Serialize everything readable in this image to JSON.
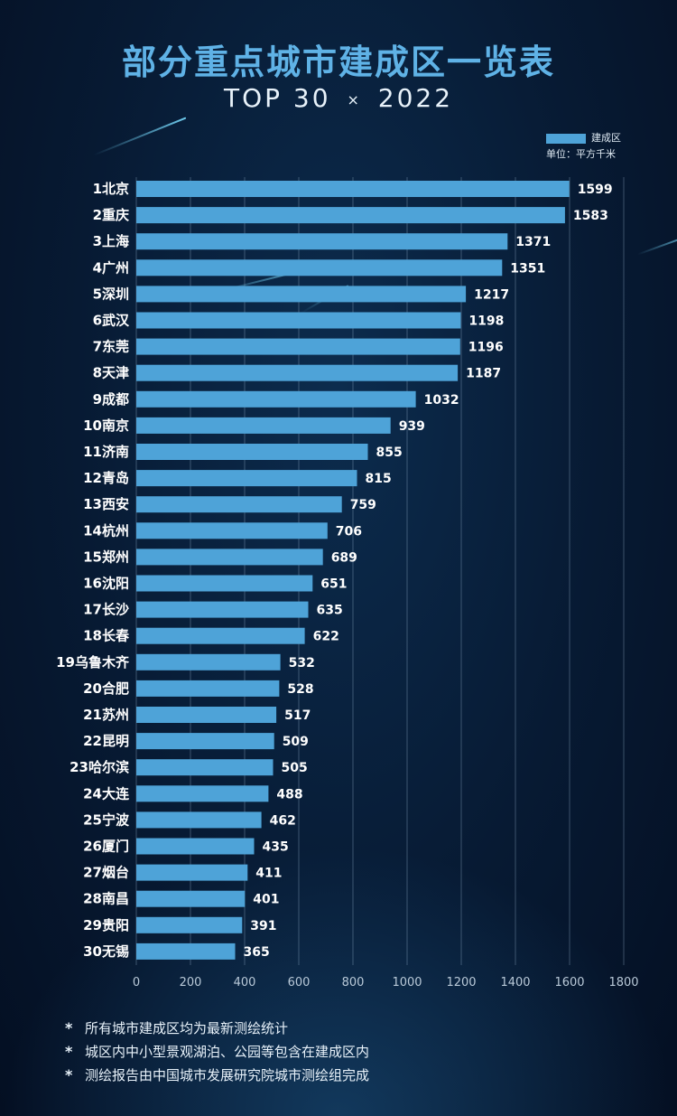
{
  "header": {
    "title": "部分重点城市建成区一览表",
    "subtitle_left": "TOP 30",
    "subtitle_sep": "×",
    "subtitle_right": "2022"
  },
  "legend": {
    "series_label": "建成区",
    "unit": "单位：平方千米"
  },
  "chart_data": {
    "type": "bar",
    "orientation": "horizontal",
    "title": "部分重点城市建成区一览表",
    "series": [
      {
        "name": "建成区",
        "values": [
          1599,
          1583,
          1371,
          1351,
          1217,
          1198,
          1196,
          1187,
          1032,
          939,
          855,
          815,
          759,
          706,
          689,
          651,
          635,
          622,
          532,
          528,
          517,
          509,
          505,
          488,
          462,
          435,
          411,
          401,
          391,
          365
        ]
      }
    ],
    "categories": [
      "1北京",
      "2重庆",
      "3上海",
      "4广州",
      "5深圳",
      "6武汉",
      "7东莞",
      "8天津",
      "9成都",
      "10南京",
      "11济南",
      "12青岛",
      "13西安",
      "14杭州",
      "15郑州",
      "16沈阳",
      "17长沙",
      "18长春",
      "19乌鲁木齐",
      "20合肥",
      "21苏州",
      "22昆明",
      "23哈尔滨",
      "24大连",
      "25宁波",
      "26厦门",
      "27烟台",
      "28南昌",
      "29贵阳",
      "30无锡"
    ],
    "values": [
      1599,
      1583,
      1371,
      1351,
      1217,
      1198,
      1196,
      1187,
      1032,
      939,
      855,
      815,
      759,
      706,
      689,
      651,
      635,
      622,
      532,
      528,
      517,
      509,
      505,
      488,
      462,
      435,
      411,
      401,
      391,
      365
    ],
    "xlim": [
      0,
      1800
    ],
    "xticks": [
      "0",
      "200",
      "400",
      "600",
      "800",
      "1000",
      "1200",
      "1400",
      "1600",
      "1800"
    ],
    "grid": true,
    "xlabel": "",
    "ylabel": "",
    "legend_position": "top-right",
    "bar_color": "#4ea3d8"
  },
  "notes": [
    "所有城市建成区均为最新测绘统计",
    "城区内中小型景观湖泊、公园等包含在建成区内",
    "测绘报告由中国城市发展研究院城市测绘组完成"
  ],
  "note_marker": "*"
}
